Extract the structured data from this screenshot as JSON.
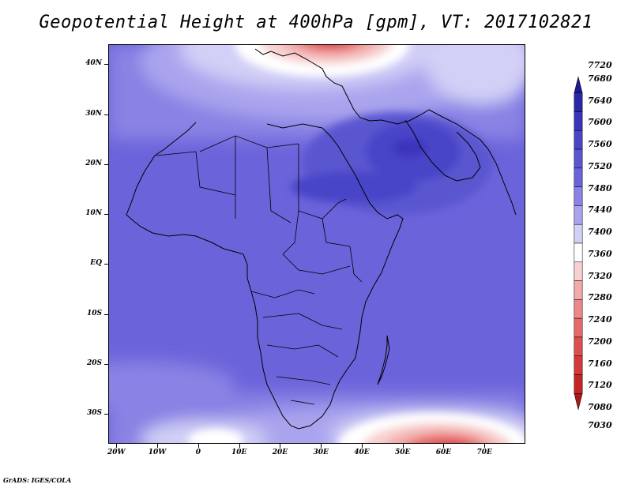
{
  "title": "Geopotential Height at 400hPa [gpm], VT: 2017102821",
  "credit": "GrADS: IGES/COLA",
  "map": {
    "lon_range": [
      -22,
      80
    ],
    "lat_range": [
      -36,
      44
    ],
    "lat_ticks": [
      {
        "value": 40,
        "label": "40N"
      },
      {
        "value": 30,
        "label": "30N"
      },
      {
        "value": 20,
        "label": "20N"
      },
      {
        "value": 10,
        "label": "10N"
      },
      {
        "value": 0,
        "label": "EQ"
      },
      {
        "value": -10,
        "label": "10S"
      },
      {
        "value": -20,
        "label": "20S"
      },
      {
        "value": -30,
        "label": "30S"
      }
    ],
    "lon_ticks": [
      {
        "value": -20,
        "label": "20W"
      },
      {
        "value": -10,
        "label": "10W"
      },
      {
        "value": 0,
        "label": "0"
      },
      {
        "value": 10,
        "label": "10E"
      },
      {
        "value": 20,
        "label": "20E"
      },
      {
        "value": 30,
        "label": "30E"
      },
      {
        "value": 40,
        "label": "40E"
      },
      {
        "value": 50,
        "label": "50E"
      },
      {
        "value": 60,
        "label": "60E"
      },
      {
        "value": 70,
        "label": "70E"
      }
    ]
  },
  "colorbar": {
    "levels": [
      {
        "label": "7720",
        "color": "#1e1a8c"
      },
      {
        "label": "7680",
        "color": "#2a26a8"
      },
      {
        "label": "7640",
        "color": "#3a34bc"
      },
      {
        "label": "7600",
        "color": "#4a44c8"
      },
      {
        "label": "7560",
        "color": "#5a56d0"
      },
      {
        "label": "7520",
        "color": "#6b63da"
      },
      {
        "label": "7480",
        "color": "#8a82e4"
      },
      {
        "label": "7440",
        "color": "#aaa4ee"
      },
      {
        "label": "7400",
        "color": "#d2d0f6"
      },
      {
        "label": "7360",
        "color": "#ffffff"
      },
      {
        "label": "7320",
        "color": "#f8d0d0"
      },
      {
        "label": "7280",
        "color": "#f2aaaa"
      },
      {
        "label": "7240",
        "color": "#ec8888"
      },
      {
        "label": "7200",
        "color": "#e66a6a"
      },
      {
        "label": "7160",
        "color": "#de4e4e"
      },
      {
        "label": "7120",
        "color": "#d43838"
      },
      {
        "label": "7080",
        "color": "#c42424"
      },
      {
        "label": "7030",
        "color": "#a81a1a"
      }
    ]
  }
}
